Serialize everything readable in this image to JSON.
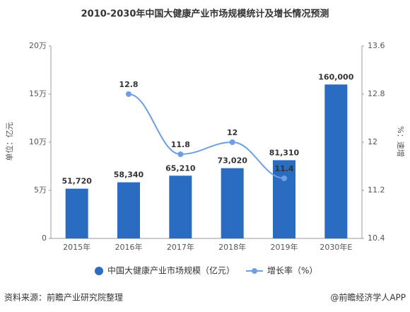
{
  "chart_data": {
    "type": "bar",
    "title": "2010-2030年中国大健康产业市场规模统计及增长情况预测",
    "y_label": "单位：亿元",
    "y2_label": "%：速增",
    "categories": [
      "2015年",
      "2016年",
      "2017年",
      "2018年",
      "2019年",
      "2030年E"
    ],
    "series": [
      {
        "name": "中国大健康产业市场规模（亿元）",
        "type": "bar",
        "color": "#2a6cbf",
        "values": [
          51720,
          58340,
          65210,
          73020,
          81310,
          160000
        ],
        "value_labels": [
          "51,720",
          "58,340",
          "65,210",
          "73,020",
          "81,310",
          "160,000"
        ]
      },
      {
        "name": "增长率（%）",
        "type": "line",
        "axis": "y2",
        "color": "#6c9fe3",
        "values": [
          null,
          12.8,
          11.8,
          12,
          11.4,
          null
        ]
      }
    ],
    "ylim": [
      0,
      200000
    ],
    "yticks": [
      0,
      {
        "value": 50000,
        "label": "5万"
      },
      {
        "value": 100000,
        "label": "10万"
      },
      {
        "value": 150000,
        "label": "15万"
      },
      {
        "value": 200000,
        "label": "20万"
      }
    ],
    "y2lim": [
      10.4,
      13.6
    ],
    "y2ticks": [
      10.4,
      11.2,
      12,
      12.8,
      13.6
    ],
    "source": "资料来源：前瞻产业研究院整理",
    "credit": "@前瞻经济学人APP"
  }
}
